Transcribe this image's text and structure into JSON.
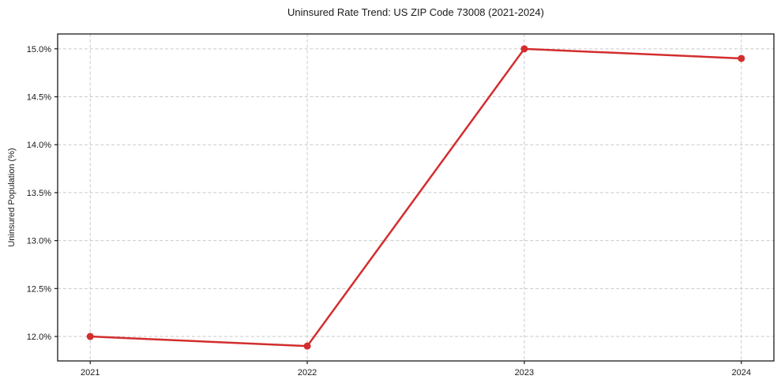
{
  "chart_data": {
    "type": "line",
    "title": "Uninsured Rate Trend: US ZIP Code 73008 (2021-2024)",
    "xlabel": "",
    "ylabel": "Uninsured Population (%)",
    "x": [
      2021,
      2022,
      2023,
      2024
    ],
    "x_tick_labels": [
      "2021",
      "2022",
      "2023",
      "2024"
    ],
    "y_ticks": [
      12.0,
      12.5,
      13.0,
      13.5,
      14.0,
      14.5,
      15.0
    ],
    "y_tick_labels": [
      "12.0%",
      "12.5%",
      "13.0%",
      "13.5%",
      "14.0%",
      "14.5%",
      "15.0%"
    ],
    "series": [
      {
        "name": "Uninsured Rate",
        "values": [
          12.0,
          11.9,
          15.0,
          14.9
        ]
      }
    ],
    "xlim": [
      2020.85,
      2024.15
    ],
    "ylim": [
      11.745,
      15.155
    ],
    "grid": true,
    "grid_style": "dashed",
    "legend": false,
    "colors": {
      "line": "#d32d2d",
      "marker": "#d32d2d",
      "grid": "#c9c9c9",
      "spine": "#1a1a1a",
      "text": "#1a1a1a",
      "background": "#ffffff"
    }
  }
}
